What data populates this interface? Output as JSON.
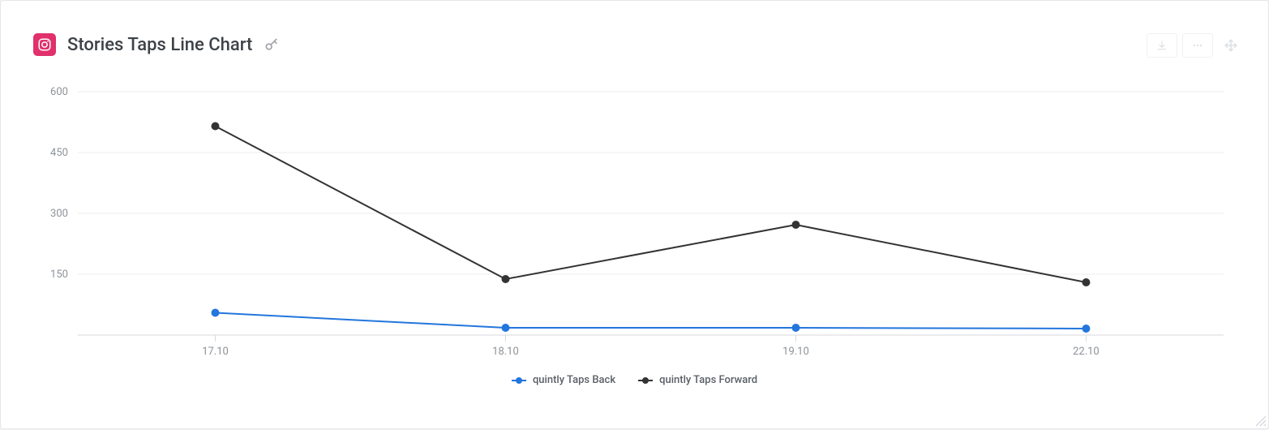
{
  "header": {
    "title": "Stories Taps Line Chart",
    "brand_color": "#e1306c"
  },
  "chart": {
    "type": "line",
    "background_color": "#ffffff",
    "grid_color": "#ececef",
    "axis_color": "#d8dade",
    "tick_label_color": "#8d9298",
    "tick_fontsize": 13,
    "x_categories": [
      "17.10",
      "18.10",
      "19.10",
      "22.10"
    ],
    "ylim": [
      0,
      600
    ],
    "ytick_step": 150,
    "series": [
      {
        "name": "quintly Taps Back",
        "color": "#2376dd",
        "line_width": 2,
        "marker_radius": 5,
        "values": [
          55,
          18,
          18,
          16
        ]
      },
      {
        "name": "quintly Taps Forward",
        "color": "#333333",
        "line_width": 2,
        "marker_radius": 5,
        "values": [
          515,
          138,
          272,
          130
        ]
      }
    ]
  },
  "legend": {
    "items": [
      {
        "label": "quintly Taps Back",
        "color": "#2376dd"
      },
      {
        "label": "quintly Taps Forward",
        "color": "#333333"
      }
    ],
    "fontsize": 13,
    "text_color": "#5a5f66"
  }
}
